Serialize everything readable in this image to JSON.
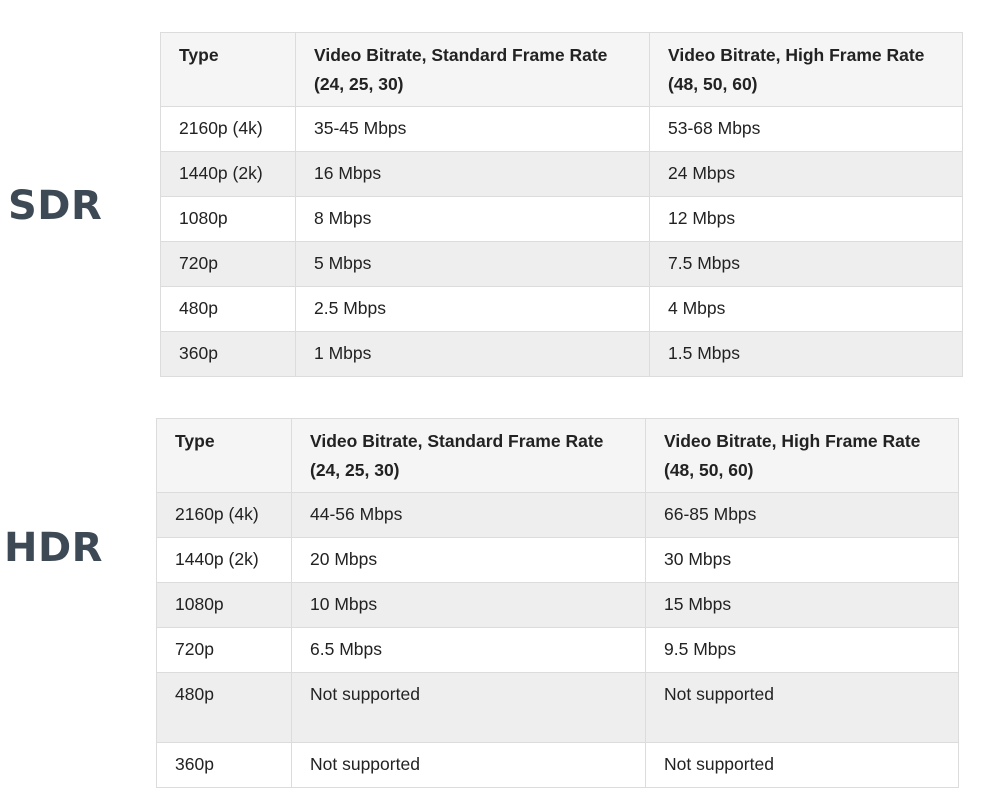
{
  "sdr": {
    "label": "SDR",
    "headers": [
      "Type",
      "Video Bitrate, Standard Frame Rate (24, 25, 30)",
      "Video Bitrate, High Frame Rate (48, 50, 60)"
    ],
    "rows": [
      [
        "2160p (4k)",
        "35-45 Mbps",
        "53-68 Mbps"
      ],
      [
        "1440p (2k)",
        "16 Mbps",
        "24 Mbps"
      ],
      [
        "1080p",
        "8 Mbps",
        "12 Mbps"
      ],
      [
        "720p",
        "5 Mbps",
        "7.5 Mbps"
      ],
      [
        "480p",
        "2.5 Mbps",
        "4 Mbps"
      ],
      [
        "360p",
        "1 Mbps",
        "1.5 Mbps"
      ]
    ]
  },
  "hdr": {
    "label": "HDR",
    "headers": [
      "Type",
      "Video Bitrate, Standard Frame Rate (24, 25, 30)",
      "Video Bitrate, High Frame Rate (48, 50, 60)"
    ],
    "rows": [
      [
        "2160p (4k)",
        "44-56 Mbps",
        "66-85 Mbps"
      ],
      [
        "1440p (2k)",
        "20 Mbps",
        "30 Mbps"
      ],
      [
        "1080p",
        "10 Mbps",
        "15 Mbps"
      ],
      [
        "720p",
        "6.5 Mbps",
        "9.5 Mbps"
      ],
      [
        "480p",
        "Not supported",
        "Not supported"
      ],
      [
        "360p",
        "Not supported",
        "Not supported"
      ]
    ]
  }
}
